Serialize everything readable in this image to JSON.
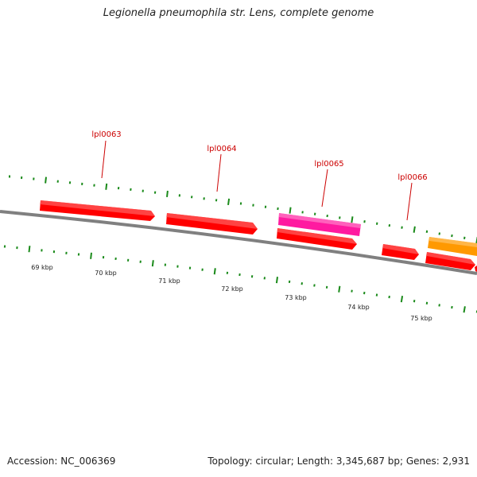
{
  "title": "Legionella pneumophila str. Lens, complete genome",
  "footer": {
    "accession": "Accession: NC_006369",
    "summary": "Topology: circular; Length: 3,345,687 bp; Genes: 2,931"
  },
  "colors": {
    "background": "#ffffff",
    "backbone": "#808080",
    "tick": "#1a8a1a",
    "label": "#cc0000",
    "cds_red": "#ff0000",
    "cds_pink": "#ff1aa0",
    "cds_orange": "#ff9900"
  },
  "scale": {
    "unit": "kbp",
    "labels": [
      "69 kbp",
      "70 kbp",
      "71 kbp",
      "72 kbp",
      "73 kbp",
      "74 kbp",
      "75 kbp"
    ]
  },
  "gene_labels": [
    "lpl0063",
    "lpl0064",
    "lpl0065",
    "lpl0066"
  ]
}
